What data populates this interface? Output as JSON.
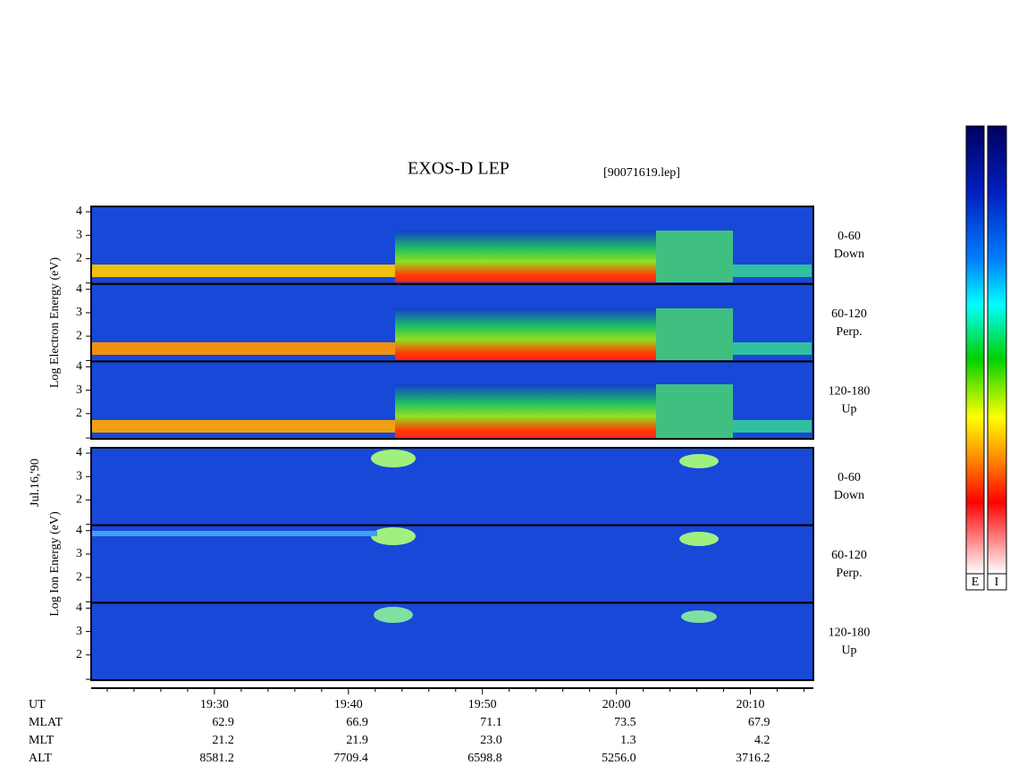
{
  "chart_data": {
    "type": "spectrogram",
    "title": "EXOS-D LEP",
    "subtitle": "[90071619.lep]",
    "date_label": "Jul.16,'90",
    "xlim": [
      1160.8,
      1214.7
    ],
    "xticks": [
      {
        "value": 1170,
        "label": "19:30"
      },
      {
        "value": 1180,
        "label": "19:40"
      },
      {
        "value": 1190,
        "label": "19:50"
      },
      {
        "value": 1200,
        "label": "20:00"
      },
      {
        "value": 1210,
        "label": "20:10"
      }
    ],
    "xminor": [
      1162,
      1164,
      1166,
      1168,
      1172,
      1174,
      1176,
      1178,
      1182,
      1184,
      1186,
      1188,
      1192,
      1194,
      1196,
      1198,
      1202,
      1204,
      1206,
      1208,
      1212,
      1214
    ],
    "groups": [
      {
        "ylabel": "Log  Electron  Energy (eV)",
        "panels": [
          {
            "ylim": [
              0.92,
              4.23
            ],
            "yticks": [
              2,
              3,
              4
            ],
            "label": [
              "0-60",
              "Down"
            ]
          },
          {
            "ylim": [
              0.92,
              4.23
            ],
            "yticks": [
              2,
              3,
              4
            ],
            "label": [
              "60-120",
              "Perp."
            ]
          },
          {
            "ylim": [
              0.92,
              4.23
            ],
            "yticks": [
              2,
              3,
              4
            ],
            "label": [
              "120-180",
              "Up"
            ]
          }
        ]
      },
      {
        "ylabel": "Log  Ion  Energy (eV)",
        "panels": [
          {
            "ylim": [
              0.92,
              4.23
            ],
            "yticks": [
              2,
              3,
              4
            ],
            "label": [
              "0-60",
              "Down"
            ]
          },
          {
            "ylim": [
              0.92,
              4.23
            ],
            "yticks": [
              2,
              3,
              4
            ],
            "label": [
              "60-120",
              "Perp."
            ]
          },
          {
            "ylim": [
              0.92,
              4.23
            ],
            "yticks": [
              2,
              3,
              4
            ],
            "label": [
              "120-180",
              "Up"
            ]
          }
        ]
      }
    ],
    "rows": [
      {
        "label": "UT"
      },
      {
        "label": "MLAT",
        "values": [
          "62.9",
          "66.9",
          "71.1",
          "73.5",
          "67.9"
        ]
      },
      {
        "label": "MLT",
        "values": [
          "21.2",
          "21.9",
          "23.0",
          "1.3",
          "4.2"
        ]
      },
      {
        "label": "ALT",
        "values": [
          "8581.2",
          "7709.4",
          "6598.8",
          "5256.0",
          "3716.2"
        ]
      }
    ],
    "colorbar_labels": [
      "E",
      "I"
    ]
  }
}
